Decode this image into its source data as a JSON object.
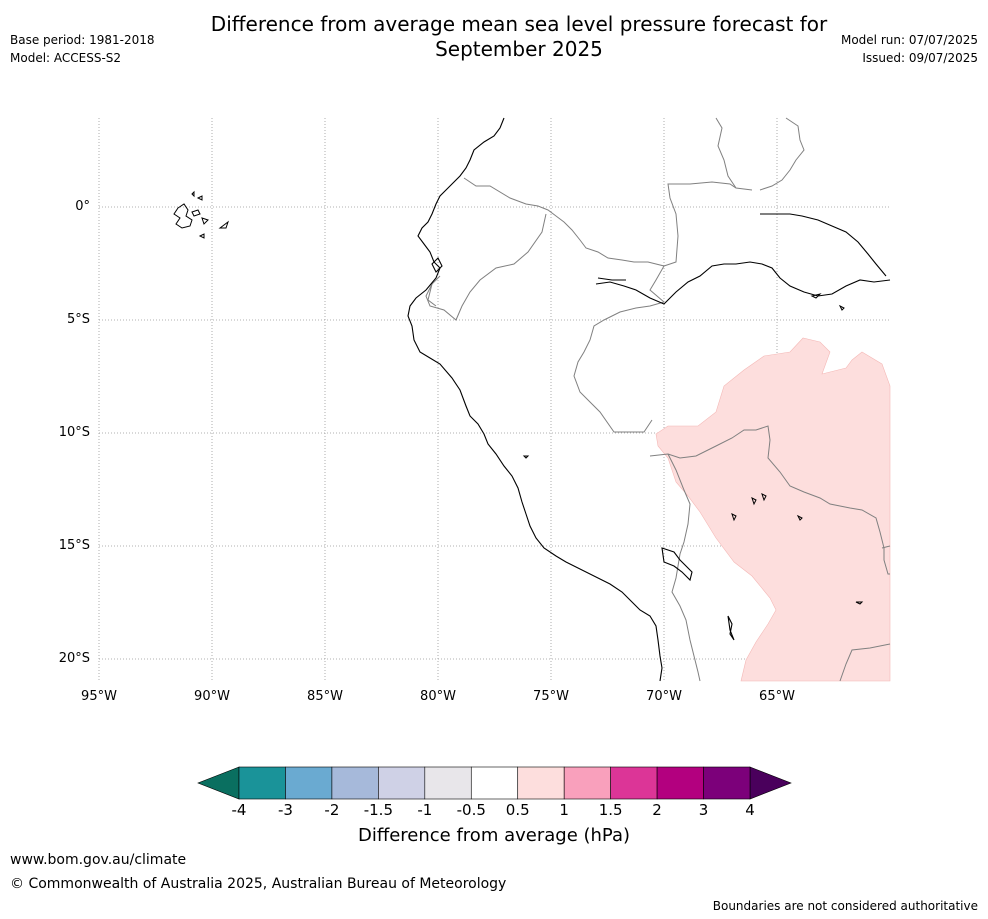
{
  "header": {
    "title_line1": "Difference from average mean sea level pressure forecast for",
    "title_line2": "September 2025",
    "base_period": "Base period: 1981-2018",
    "model": "Model: ACCESS-S2",
    "model_run": "Model run: 07/07/2025",
    "issued": "Issued: 09/07/2025"
  },
  "map": {
    "lon_range": [
      -95,
      -60
    ],
    "lat_range": [
      -21,
      4
    ],
    "lat_ticks": [
      {
        "value": 0,
        "label": "0°"
      },
      {
        "value": -5,
        "label": "5°S"
      },
      {
        "value": -10,
        "label": "10°S"
      },
      {
        "value": -15,
        "label": "15°S"
      },
      {
        "value": -20,
        "label": "20°S"
      }
    ],
    "lon_ticks": [
      {
        "value": -95,
        "label": "95°W"
      },
      {
        "value": -90,
        "label": "90°W"
      },
      {
        "value": -85,
        "label": "85°W"
      },
      {
        "value": -80,
        "label": "80°W"
      },
      {
        "value": -75,
        "label": "75°W"
      },
      {
        "value": -70,
        "label": "70°W"
      },
      {
        "value": -65,
        "label": "65°W"
      }
    ],
    "anomaly_region": {
      "category": "0.5 to 1",
      "color": "#fddedd"
    },
    "coast_color": "#000000",
    "border_color": "#808080",
    "grid": true
  },
  "colorbar": {
    "title": "Difference from average (hPa)",
    "tick_labels": [
      "-4",
      "-3",
      "-2",
      "-1.5",
      "-1",
      "-0.5",
      "0.5",
      "1",
      "1.5",
      "2",
      "3",
      "4"
    ],
    "colors": [
      "#1a9399",
      "#6aaad1",
      "#a6b9da",
      "#cfd1e6",
      "#e8e6ea",
      "#ffffff",
      "#fddedd",
      "#f9a0bc",
      "#dc3597",
      "#b3007f",
      "#7c007a"
    ],
    "extend_low_color": "#0a6f60",
    "extend_high_color": "#4a005c"
  },
  "footer": {
    "url": "www.bom.gov.au/climate",
    "copyright": "© Commonwealth of Australia 2025, Australian Bureau of Meteorology",
    "disclaimer": "Boundaries are not considered authoritative"
  }
}
